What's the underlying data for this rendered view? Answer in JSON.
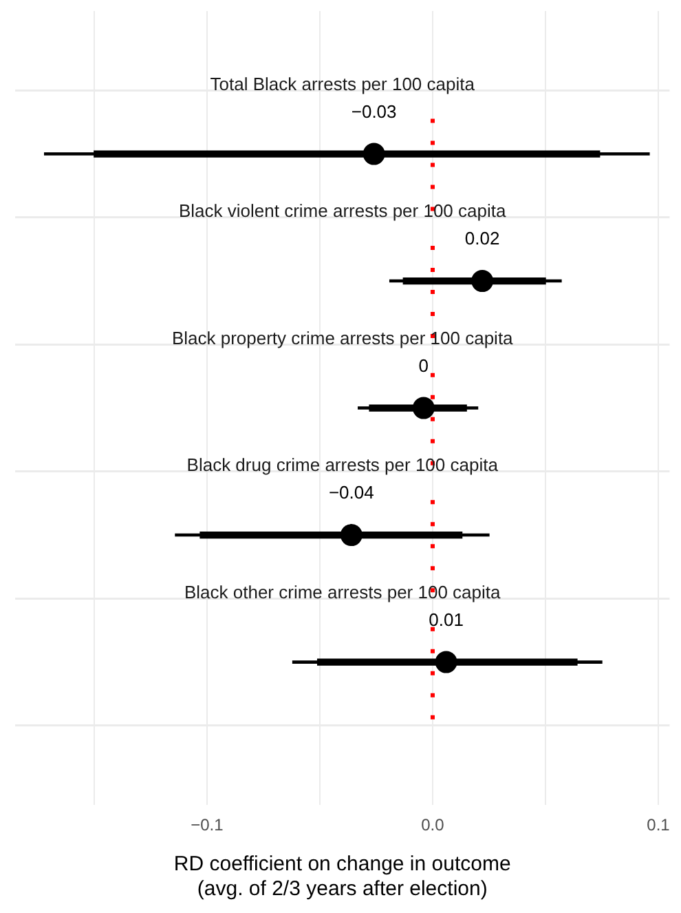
{
  "chart_data": {
    "type": "scatter",
    "orientation": "horizontal",
    "xlabel": "RD coefficient on change in outcome\n(avg. of 2/3 years after election)",
    "annotations": [
      "Total Black arrests per 100 capita",
      "Black violent crime arrests per 100 capita",
      "Black property crime arrests per 100 capita",
      "Black drug crime arrests per 100 capita",
      "Black other crime arrests per 100 capita"
    ],
    "categories": [
      null,
      null,
      null,
      null,
      null
    ],
    "series": [
      {
        "type": "bar",
        "color": "#000000",
        "base": [
          -0.172,
          -0.019,
          -0.033,
          -0.114,
          -0.062
        ],
        "values": [
          0.268,
          0.076,
          0.053,
          0.139,
          0.137
        ]
      },
      {
        "type": "bar",
        "color": "#000000",
        "base": [
          -0.15,
          -0.013,
          -0.028,
          -0.103,
          -0.051
        ],
        "values": [
          0.224,
          0.063,
          0.043,
          0.116,
          0.115
        ]
      },
      {
        "color": "#000000",
        "marker": "circle",
        "values": [
          -0.026,
          0.022,
          -0.004,
          -0.036,
          0.006
        ],
        "value_labels": [
          "−0.03",
          "0.02",
          "0",
          "−0.04",
          "0.01"
        ]
      }
    ],
    "xlim": [
      -0.185,
      0.105
    ],
    "xticks": [
      {
        "value": -0.15,
        "label": null
      },
      -0.1,
      {
        "value": -0.05,
        "label": null
      },
      {
        "value": 0,
        "label": "0.0"
      },
      {
        "value": 0.05,
        "label": null
      },
      0.1
    ],
    "grid": true,
    "tick_labels": "x",
    "ref_lines": [
      {
        "axis": "x",
        "value": 0,
        "color": "#ff0000",
        "line_style": "dotted"
      }
    ]
  }
}
